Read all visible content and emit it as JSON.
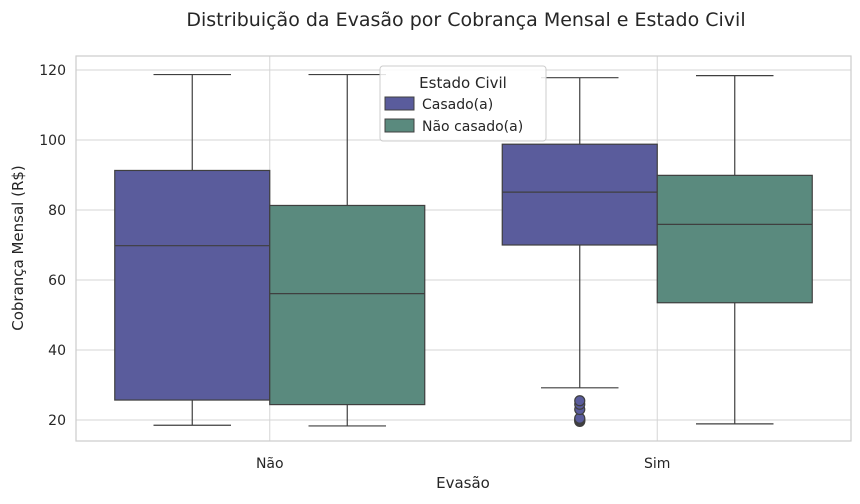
{
  "chart_data": {
    "type": "box",
    "title": "Distribuição da Evasão por Cobrança Mensal e Estado Civil",
    "xlabel": "Evasão",
    "ylabel": "Cobrança Mensal (R$)",
    "categories": [
      "Não",
      "Sim"
    ],
    "ylim": [
      14,
      124
    ],
    "yticks": [
      20,
      40,
      60,
      80,
      100,
      120
    ],
    "grid": true,
    "legend": {
      "title": "Estado Civil",
      "placement": "top-center"
    },
    "series": [
      {
        "name": "Casado(a)",
        "color": "#5a5c9c",
        "boxes": [
          {
            "category": "Não",
            "whisker_low": 18.5,
            "q1": 25.7,
            "median": 69.8,
            "q3": 91.3,
            "whisker_high": 118.7,
            "outliers": []
          },
          {
            "category": "Sim",
            "whisker_low": 29.2,
            "q1": 70.0,
            "median": 85.1,
            "q3": 98.8,
            "whisker_high": 117.8,
            "outliers": [
              19.6,
              19.9,
              20.2,
              20.5,
              23.0,
              24.5,
              25.5
            ]
          }
        ]
      },
      {
        "name": "Não casado(a)",
        "color": "#5a8a7e",
        "boxes": [
          {
            "category": "Não",
            "whisker_low": 18.3,
            "q1": 24.4,
            "median": 56.1,
            "q3": 81.3,
            "whisker_high": 118.7,
            "outliers": []
          },
          {
            "category": "Sim",
            "whisker_low": 18.9,
            "q1": 53.5,
            "median": 75.9,
            "q3": 89.9,
            "whisker_high": 118.4,
            "outliers": []
          }
        ]
      }
    ]
  }
}
